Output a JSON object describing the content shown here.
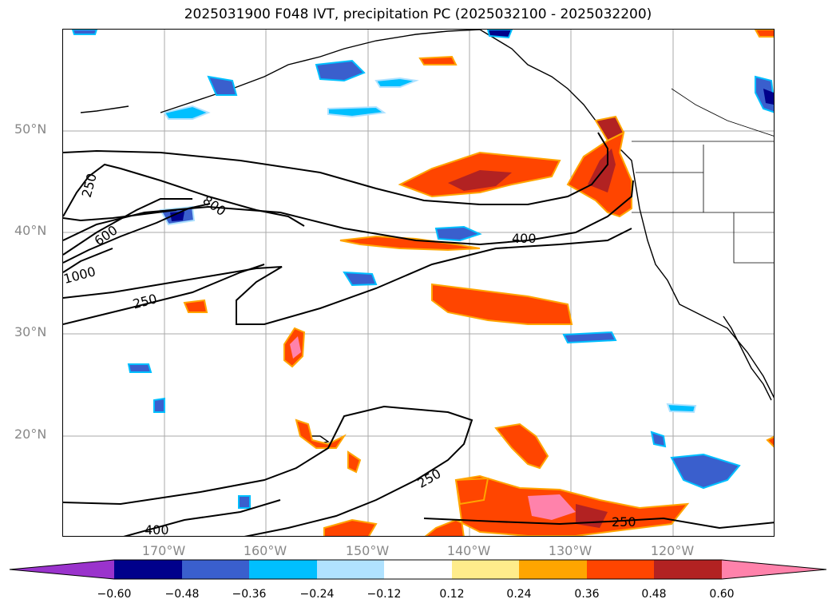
{
  "title": "2025031900 F048 IVT, precipitation PC (2025032100 - 2025032200)",
  "lat_labels": [
    "50°N",
    "40°N",
    "30°N",
    "20°N"
  ],
  "lon_labels": [
    "170°W",
    "160°W",
    "150°W",
    "140°W",
    "130°W",
    "120°W"
  ],
  "contour_labels": [
    "250",
    "600",
    "800",
    "1000",
    "250",
    "400",
    "250",
    "250",
    "400"
  ],
  "colorbar": {
    "tick_labels": [
      "−0.60",
      "−0.48",
      "−0.36",
      "−0.24",
      "−0.12",
      "0.12",
      "0.24",
      "0.36",
      "0.48",
      "0.60"
    ],
    "colors": [
      "#9a33cc",
      "#00008b",
      "#3a5fcd",
      "#00bfff",
      "#b0e2ff",
      "#ffffff",
      "#ffec8b",
      "#ffa500",
      "#ff4500",
      "#b22222",
      "#ff82ab"
    ]
  }
}
